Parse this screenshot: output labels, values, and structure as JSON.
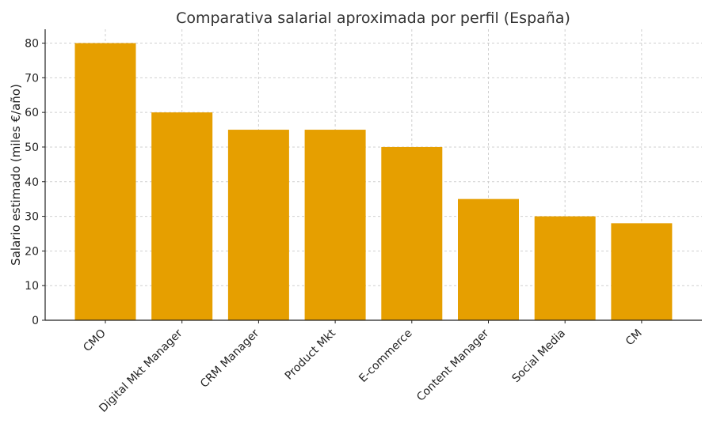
{
  "chart_data": {
    "type": "bar",
    "title": "Comparativa salarial aproximada por perfil (España)",
    "xlabel": "",
    "ylabel": "Salario estimado (miles €/año)",
    "categories": [
      "CMO",
      "Digital Mkt Manager",
      "CRM Manager",
      "Product Mkt",
      "E-commerce",
      "Content Manager",
      "Social Media",
      "CM"
    ],
    "values": [
      80,
      60,
      55,
      55,
      50,
      35,
      30,
      28
    ],
    "ylim": [
      0,
      84
    ],
    "yticks": [
      "0",
      "10",
      "20",
      "30",
      "40",
      "50",
      "60",
      "70",
      "80"
    ],
    "grid": true,
    "bar_color": "#E69F00"
  }
}
